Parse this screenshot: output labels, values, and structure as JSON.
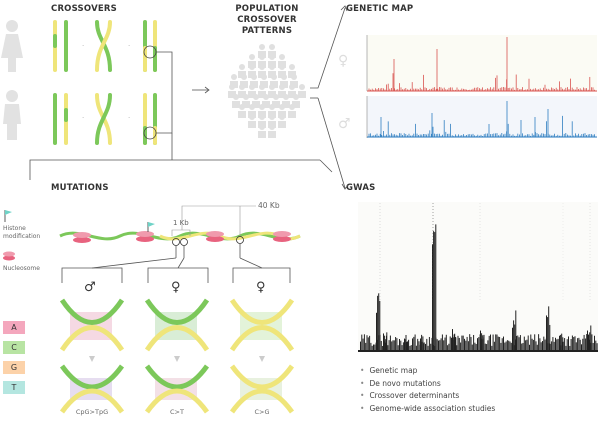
{
  "headers": {
    "crossovers": "CROSSOVERS",
    "population_line1": "POPULATION",
    "population_line2": "CROSSOVER",
    "population_line3": "PATTERNS",
    "genetic_map": "GENETIC MAP",
    "mutations": "MUTATIONS",
    "gwas": "GWAS"
  },
  "labels": {
    "histone_line1": "Histone",
    "histone_line2": "modification",
    "nucleosome": "Nucleosome",
    "kb1": "1 Kb",
    "kb40": "40 Kb"
  },
  "bases": [
    {
      "letter": "A",
      "color": "#f4a7bd"
    },
    {
      "letter": "C",
      "color": "#b8e4a3"
    },
    {
      "letter": "G",
      "color": "#fcd2a9"
    },
    {
      "letter": "T",
      "color": "#b4e6e0"
    }
  ],
  "mutation_types": [
    "CpG>TpG",
    "C>T",
    "C>G"
  ],
  "summary": [
    "Genetic map",
    "De novo mutations",
    "Crossover determinants",
    "Genome-wide association studies"
  ],
  "colors": {
    "green": "#7cc85a",
    "yellow": "#efe57a",
    "female_map": "#d9534f",
    "male_map": "#2f7fc1",
    "gwas": "#222222",
    "nucleosome": "#e8637f"
  }
}
